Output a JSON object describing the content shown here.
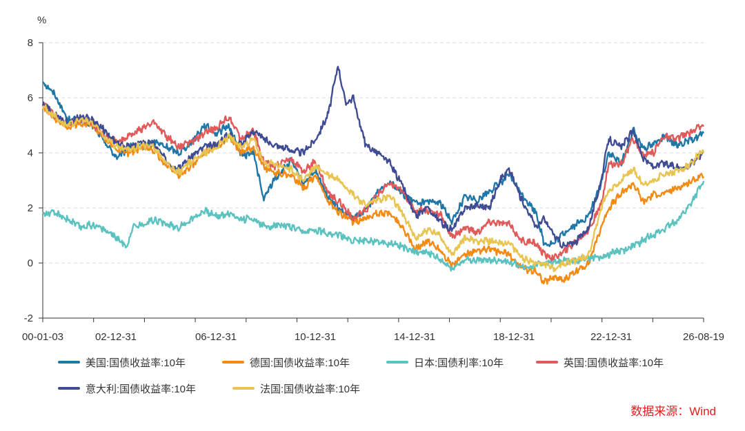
{
  "chart_data": {
    "type": "line",
    "yunit": "%",
    "ylim": [
      -2,
      8
    ],
    "yticks": [
      -2,
      0,
      2,
      4,
      6,
      8
    ],
    "x_tick_labels": [
      "00-01-03",
      "02-12-31",
      "06-12-31",
      "10-12-31",
      "14-12-31",
      "18-12-31",
      "22-12-31",
      "26-08-19"
    ],
    "grid": true,
    "legend_position": "bottom",
    "source": "数据来源：Wind",
    "series": [
      {
        "name": "美国:国债收益率:10年",
        "color": "#1f77a8",
        "x": [
          2000.0,
          2000.5,
          2001.0,
          2001.5,
          2002.0,
          2002.5,
          2003.0,
          2003.5,
          2004.0,
          2004.5,
          2005.0,
          2005.5,
          2006.0,
          2006.5,
          2007.0,
          2007.5,
          2008.0,
          2008.5,
          2008.9,
          2009.3,
          2010.0,
          2010.5,
          2011.0,
          2011.5,
          2012.0,
          2012.5,
          2013.0,
          2013.5,
          2014.0,
          2014.5,
          2015.0,
          2015.5,
          2016.0,
          2016.5,
          2017.0,
          2017.5,
          2018.0,
          2018.8,
          2019.3,
          2019.9,
          2020.2,
          2020.6,
          2021.0,
          2021.5,
          2022.0,
          2022.5,
          2022.8,
          2023.3,
          2023.8,
          2024.2,
          2024.6,
          2025.0,
          2025.5,
          2026.0,
          2026.6
        ],
        "y": [
          6.6,
          6.1,
          5.2,
          5.2,
          5.0,
          4.4,
          3.8,
          4.2,
          4.2,
          4.4,
          4.2,
          4.0,
          4.4,
          5.0,
          4.7,
          5.0,
          3.9,
          4.0,
          2.3,
          3.0,
          3.7,
          2.9,
          3.3,
          2.4,
          1.9,
          1.6,
          1.9,
          2.6,
          3.0,
          2.5,
          2.2,
          2.2,
          2.2,
          1.5,
          2.4,
          2.3,
          2.6,
          3.2,
          2.5,
          1.8,
          0.7,
          0.7,
          1.1,
          1.4,
          1.7,
          2.9,
          4.0,
          3.6,
          4.8,
          4.2,
          4.3,
          4.6,
          4.3,
          4.4,
          4.7
        ]
      },
      {
        "name": "德国:国债收益率:10年",
        "color": "#f28a14",
        "x": [
          2000.0,
          2000.5,
          2001.0,
          2001.5,
          2002.0,
          2002.5,
          2003.0,
          2003.5,
          2004.0,
          2004.5,
          2005.0,
          2005.5,
          2006.0,
          2006.5,
          2007.0,
          2007.5,
          2008.0,
          2008.5,
          2008.9,
          2009.3,
          2010.0,
          2010.5,
          2011.0,
          2011.5,
          2012.0,
          2012.5,
          2013.0,
          2013.5,
          2014.0,
          2014.5,
          2015.0,
          2015.5,
          2016.0,
          2016.5,
          2017.0,
          2017.5,
          2018.0,
          2018.8,
          2019.3,
          2019.9,
          2020.2,
          2020.6,
          2021.0,
          2021.5,
          2022.0,
          2022.5,
          2022.8,
          2023.3,
          2023.8,
          2024.2,
          2024.6,
          2025.0,
          2025.5,
          2026.0,
          2026.6
        ],
        "y": [
          5.7,
          5.2,
          4.9,
          5.1,
          5.0,
          4.5,
          4.1,
          4.0,
          4.2,
          4.1,
          3.5,
          3.2,
          3.5,
          4.0,
          4.2,
          4.6,
          4.0,
          4.2,
          3.5,
          3.3,
          3.2,
          2.7,
          3.2,
          2.2,
          1.8,
          1.5,
          1.6,
          1.8,
          1.8,
          1.3,
          0.5,
          0.8,
          0.5,
          -0.1,
          0.3,
          0.4,
          0.5,
          0.3,
          -0.2,
          -0.3,
          -0.7,
          -0.5,
          -0.6,
          -0.3,
          0.0,
          1.3,
          2.0,
          2.5,
          2.9,
          2.2,
          2.5,
          2.5,
          2.7,
          2.9,
          3.2
        ]
      },
      {
        "name": "日本:国债利率:10年",
        "color": "#5bc2c0",
        "x": [
          2000.0,
          2000.5,
          2001.0,
          2001.5,
          2002.0,
          2002.5,
          2003.0,
          2003.4,
          2003.6,
          2004.0,
          2004.5,
          2005.0,
          2005.5,
          2006.0,
          2006.5,
          2007.0,
          2007.5,
          2008.0,
          2008.5,
          2009.0,
          2009.5,
          2010.0,
          2010.5,
          2011.0,
          2011.5,
          2012.0,
          2012.5,
          2013.0,
          2013.5,
          2014.0,
          2014.5,
          2015.0,
          2015.5,
          2016.0,
          2016.5,
          2017.0,
          2017.5,
          2018.0,
          2018.5,
          2019.0,
          2019.5,
          2020.0,
          2020.5,
          2021.0,
          2021.5,
          2022.0,
          2022.5,
          2023.0,
          2023.5,
          2024.0,
          2024.5,
          2025.0,
          2025.5,
          2026.0,
          2026.6
        ],
        "y": [
          1.8,
          1.8,
          1.6,
          1.3,
          1.4,
          1.2,
          0.9,
          0.6,
          1.3,
          1.4,
          1.6,
          1.4,
          1.3,
          1.6,
          1.9,
          1.7,
          1.8,
          1.6,
          1.6,
          1.3,
          1.4,
          1.3,
          1.1,
          1.2,
          1.1,
          1.0,
          0.8,
          0.8,
          0.8,
          0.7,
          0.6,
          0.4,
          0.4,
          0.1,
          -0.2,
          0.1,
          0.1,
          0.1,
          0.1,
          0.0,
          -0.2,
          0.0,
          0.0,
          0.1,
          0.1,
          0.2,
          0.2,
          0.4,
          0.5,
          0.7,
          1.0,
          1.2,
          1.5,
          2.0,
          2.9
        ]
      },
      {
        "name": "英国:国债收益率:10年",
        "color": "#e05a5a",
        "x": [
          2000.0,
          2000.5,
          2001.0,
          2001.5,
          2002.0,
          2002.5,
          2003.0,
          2003.5,
          2004.0,
          2004.5,
          2005.0,
          2005.5,
          2006.0,
          2006.5,
          2007.0,
          2007.5,
          2008.0,
          2008.5,
          2008.9,
          2009.3,
          2010.0,
          2010.5,
          2011.0,
          2011.5,
          2012.0,
          2012.5,
          2013.0,
          2013.5,
          2014.0,
          2014.5,
          2015.0,
          2015.5,
          2016.0,
          2016.5,
          2017.0,
          2017.5,
          2018.0,
          2018.8,
          2019.3,
          2019.9,
          2020.2,
          2020.6,
          2021.0,
          2021.5,
          2022.0,
          2022.5,
          2022.8,
          2023.3,
          2023.8,
          2024.2,
          2024.6,
          2025.0,
          2025.5,
          2026.0,
          2026.6
        ],
        "y": [
          5.8,
          5.3,
          5.0,
          5.2,
          5.1,
          4.6,
          4.4,
          4.6,
          4.9,
          5.1,
          4.6,
          4.2,
          4.4,
          4.7,
          4.9,
          5.3,
          4.5,
          4.8,
          3.7,
          3.5,
          3.8,
          3.3,
          3.7,
          2.5,
          2.2,
          1.6,
          1.9,
          2.5,
          2.9,
          2.6,
          1.9,
          1.9,
          1.8,
          0.9,
          1.3,
          1.1,
          1.5,
          1.4,
          0.8,
          0.7,
          0.3,
          0.2,
          0.4,
          0.8,
          1.2,
          2.1,
          3.6,
          3.6,
          4.5,
          3.9,
          4.0,
          4.6,
          4.5,
          4.7,
          5.0
        ]
      },
      {
        "name": "意大利:国债收益率:10年",
        "color": "#3f4c93",
        "x": [
          2000.0,
          2000.5,
          2001.0,
          2001.5,
          2002.0,
          2002.5,
          2003.0,
          2003.5,
          2004.0,
          2004.5,
          2005.0,
          2005.5,
          2006.0,
          2006.5,
          2007.0,
          2007.5,
          2008.0,
          2008.5,
          2008.9,
          2009.3,
          2010.0,
          2010.5,
          2011.0,
          2011.5,
          2011.9,
          2012.2,
          2012.5,
          2012.8,
          2013.0,
          2013.5,
          2014.0,
          2014.5,
          2015.0,
          2015.5,
          2016.0,
          2016.5,
          2017.0,
          2017.5,
          2018.0,
          2018.4,
          2018.8,
          2019.3,
          2019.9,
          2020.2,
          2020.6,
          2021.0,
          2021.5,
          2022.0,
          2022.5,
          2022.8,
          2023.3,
          2023.8,
          2024.2,
          2024.6,
          2025.0,
          2025.5,
          2026.0,
          2026.6
        ],
        "y": [
          5.8,
          5.4,
          5.1,
          5.3,
          5.2,
          4.8,
          4.3,
          4.2,
          4.4,
          4.3,
          3.7,
          3.4,
          3.9,
          4.2,
          4.3,
          4.7,
          4.3,
          4.8,
          4.5,
          4.3,
          4.1,
          4.0,
          4.5,
          5.4,
          7.2,
          5.8,
          6.0,
          5.0,
          4.3,
          4.0,
          3.6,
          2.8,
          1.7,
          2.0,
          1.5,
          1.2,
          2.0,
          2.1,
          2.0,
          3.0,
          3.4,
          2.3,
          1.3,
          1.6,
          1.0,
          0.6,
          0.8,
          1.3,
          3.0,
          4.5,
          4.2,
          4.8,
          3.8,
          3.5,
          3.6,
          3.5,
          3.5,
          4.0
        ]
      },
      {
        "name": "法国:国债收益率:10年",
        "color": "#e8c452",
        "x": [
          2000.0,
          2000.5,
          2001.0,
          2001.5,
          2002.0,
          2002.5,
          2003.0,
          2003.5,
          2004.0,
          2004.5,
          2005.0,
          2005.5,
          2006.0,
          2006.5,
          2007.0,
          2007.5,
          2008.0,
          2008.5,
          2008.9,
          2009.3,
          2010.0,
          2010.5,
          2011.0,
          2011.5,
          2012.0,
          2012.5,
          2013.0,
          2013.5,
          2014.0,
          2014.5,
          2015.0,
          2015.5,
          2016.0,
          2016.5,
          2017.0,
          2017.5,
          2018.0,
          2018.8,
          2019.3,
          2019.9,
          2020.2,
          2020.6,
          2021.0,
          2021.5,
          2022.0,
          2022.5,
          2022.8,
          2023.3,
          2023.8,
          2024.2,
          2024.6,
          2025.0,
          2025.5,
          2026.0,
          2026.6
        ],
        "y": [
          5.7,
          5.3,
          5.0,
          5.2,
          5.1,
          4.6,
          4.2,
          4.1,
          4.3,
          4.2,
          3.6,
          3.3,
          3.7,
          4.0,
          4.2,
          4.6,
          4.2,
          4.5,
          3.6,
          3.6,
          3.4,
          3.0,
          3.5,
          3.2,
          3.0,
          2.5,
          2.1,
          2.3,
          2.4,
          1.8,
          0.9,
          1.2,
          1.0,
          0.3,
          0.9,
          0.8,
          0.8,
          0.7,
          0.2,
          0.0,
          0.0,
          -0.2,
          0.0,
          0.1,
          0.3,
          2.0,
          2.6,
          3.0,
          3.4,
          2.8,
          3.0,
          3.2,
          3.3,
          3.5,
          4.1
        ]
      }
    ]
  }
}
